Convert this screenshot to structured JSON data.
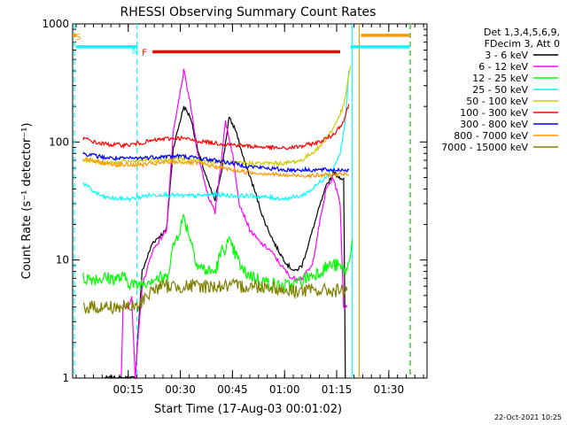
{
  "chart_data": {
    "type": "line",
    "title": "RHESSI Observing Summary Count Rates",
    "xlabel": "Start Time (17-Aug-03 00:01:02)",
    "ylabel": "Count Rate (s⁻¹ detector⁻¹)",
    "y_scale": "log",
    "ylim": [
      1,
      1000
    ],
    "xlim_minutes": [
      0,
      100
    ],
    "x_ticks": [
      {
        "t": 15,
        "label": "00:15"
      },
      {
        "t": 30,
        "label": "00:30"
      },
      {
        "t": 45,
        "label": "00:45"
      },
      {
        "t": 60,
        "label": "01:00"
      },
      {
        "t": 75,
        "label": "01:15"
      },
      {
        "t": 90,
        "label": "01:30"
      }
    ],
    "y_ticks": [
      {
        "v": 1,
        "label": "1"
      },
      {
        "v": 10,
        "label": "10"
      },
      {
        "v": 100,
        "label": "100"
      },
      {
        "v": 1000,
        "label": "1000"
      }
    ],
    "legend": {
      "position": "right",
      "header": [
        "Det 1,3,4,5,6,9,",
        "FDecim 3, Att 0"
      ]
    },
    "series": [
      {
        "name": "3 - 6 keV",
        "color": "#000000",
        "points": [
          [
            8,
            1
          ],
          [
            17,
            1
          ],
          [
            19,
            8
          ],
          [
            22,
            14
          ],
          [
            26,
            18
          ],
          [
            28,
            90
          ],
          [
            31,
            200
          ],
          [
            33,
            160
          ],
          [
            35,
            85
          ],
          [
            38,
            45
          ],
          [
            40,
            32
          ],
          [
            42,
            60
          ],
          [
            44,
            160
          ],
          [
            46,
            125
          ],
          [
            48,
            75
          ],
          [
            51,
            42
          ],
          [
            54,
            22
          ],
          [
            57,
            14
          ],
          [
            59,
            11
          ],
          [
            61,
            9
          ],
          [
            63,
            8
          ],
          [
            65,
            9
          ],
          [
            67,
            14
          ],
          [
            70,
            28
          ],
          [
            72,
            42
          ],
          [
            74,
            55
          ],
          [
            77,
            48
          ],
          [
            77.5,
            1
          ]
        ]
      },
      {
        "name": "6 - 12 keV",
        "color": "#ff00ff",
        "points": [
          [
            13,
            1
          ],
          [
            13.5,
            4
          ],
          [
            15,
            4
          ],
          [
            16,
            5
          ],
          [
            17,
            1
          ],
          [
            19,
            6
          ],
          [
            22,
            12
          ],
          [
            26,
            18
          ],
          [
            28,
            120
          ],
          [
            31,
            400
          ],
          [
            33,
            200
          ],
          [
            35,
            80
          ],
          [
            38,
            35
          ],
          [
            40,
            25
          ],
          [
            42,
            80
          ],
          [
            43,
            150
          ],
          [
            45,
            80
          ],
          [
            47,
            30
          ],
          [
            50,
            18
          ],
          [
            53,
            14
          ],
          [
            56,
            12
          ],
          [
            59,
            9
          ],
          [
            62,
            7
          ],
          [
            65,
            7
          ],
          [
            68,
            9
          ],
          [
            70,
            20
          ],
          [
            72,
            40
          ],
          [
            74,
            50
          ],
          [
            76,
            30
          ],
          [
            77,
            4
          ],
          [
            78,
            4
          ]
        ]
      },
      {
        "name": "12 - 25 keV",
        "color": "#00ff00",
        "points": [
          [
            2,
            7
          ],
          [
            10,
            7
          ],
          [
            14,
            7
          ],
          [
            17,
            6
          ],
          [
            22,
            7
          ],
          [
            26,
            7
          ],
          [
            28,
            13
          ],
          [
            31,
            23
          ],
          [
            33,
            15
          ],
          [
            35,
            9
          ],
          [
            38,
            8
          ],
          [
            40,
            8
          ],
          [
            42,
            12
          ],
          [
            44,
            14
          ],
          [
            46,
            11
          ],
          [
            48,
            8
          ],
          [
            52,
            7
          ],
          [
            58,
            6
          ],
          [
            62,
            6
          ],
          [
            66,
            7
          ],
          [
            70,
            8
          ],
          [
            73,
            9
          ],
          [
            75,
            9
          ],
          [
            78,
            8
          ],
          [
            79.5,
            15
          ]
        ]
      },
      {
        "name": "25 - 50 keV",
        "color": "#00ffff",
        "points": [
          [
            2,
            45
          ],
          [
            5,
            38
          ],
          [
            8,
            34
          ],
          [
            12,
            33
          ],
          [
            16,
            33
          ],
          [
            20,
            35
          ],
          [
            25,
            36
          ],
          [
            30,
            35
          ],
          [
            35,
            35
          ],
          [
            40,
            36
          ],
          [
            45,
            35
          ],
          [
            50,
            35
          ],
          [
            55,
            34
          ],
          [
            60,
            33
          ],
          [
            65,
            35
          ],
          [
            68,
            40
          ],
          [
            71,
            48
          ],
          [
            74,
            60
          ],
          [
            76,
            80
          ],
          [
            77.5,
            150
          ],
          [
            78.5,
            400
          ]
        ]
      },
      {
        "name": "50 - 100 keV",
        "color": "#cccc00",
        "points": [
          [
            2,
            70
          ],
          [
            10,
            66
          ],
          [
            20,
            70
          ],
          [
            25,
            70
          ],
          [
            30,
            72
          ],
          [
            35,
            70
          ],
          [
            40,
            68
          ],
          [
            45,
            66
          ],
          [
            50,
            66
          ],
          [
            55,
            66
          ],
          [
            60,
            66
          ],
          [
            65,
            70
          ],
          [
            70,
            90
          ],
          [
            74,
            130
          ],
          [
            77,
            200
          ],
          [
            79,
            440
          ]
        ]
      },
      {
        "name": "100 - 300 keV",
        "color": "#ff0000",
        "points": [
          [
            2,
            108
          ],
          [
            6,
            98
          ],
          [
            10,
            95
          ],
          [
            15,
            94
          ],
          [
            20,
            100
          ],
          [
            25,
            106
          ],
          [
            30,
            108
          ],
          [
            35,
            102
          ],
          [
            40,
            98
          ],
          [
            45,
            95
          ],
          [
            50,
            92
          ],
          [
            55,
            90
          ],
          [
            60,
            88
          ],
          [
            65,
            92
          ],
          [
            70,
            100
          ],
          [
            74,
            115
          ],
          [
            77,
            150
          ],
          [
            78.5,
            210
          ]
        ]
      },
      {
        "name": "300 - 800 keV",
        "color": "#0000ff",
        "points": [
          [
            2,
            80
          ],
          [
            8,
            74
          ],
          [
            12,
            72
          ],
          [
            18,
            73
          ],
          [
            24,
            75
          ],
          [
            30,
            76
          ],
          [
            35,
            73
          ],
          [
            40,
            70
          ],
          [
            45,
            66
          ],
          [
            50,
            62
          ],
          [
            55,
            60
          ],
          [
            60,
            58
          ],
          [
            65,
            58
          ],
          [
            70,
            58
          ],
          [
            75,
            58
          ],
          [
            78.5,
            58
          ]
        ]
      },
      {
        "name": "800 - 7000 keV",
        "color": "#ff9900",
        "points": [
          [
            2,
            72
          ],
          [
            8,
            66
          ],
          [
            12,
            64
          ],
          [
            18,
            64
          ],
          [
            24,
            66
          ],
          [
            30,
            68
          ],
          [
            35,
            66
          ],
          [
            40,
            62
          ],
          [
            45,
            58
          ],
          [
            50,
            55
          ],
          [
            55,
            54
          ],
          [
            60,
            52
          ],
          [
            65,
            52
          ],
          [
            70,
            52
          ],
          [
            75,
            53
          ],
          [
            78.5,
            53
          ]
        ]
      },
      {
        "name": "7000 - 15000 keV",
        "color": "#808000",
        "points": [
          [
            2,
            4
          ],
          [
            8,
            4
          ],
          [
            12,
            4
          ],
          [
            16,
            4
          ],
          [
            18,
            4
          ],
          [
            20,
            5
          ],
          [
            24,
            6
          ],
          [
            28,
            6
          ],
          [
            32,
            6
          ],
          [
            36,
            6
          ],
          [
            40,
            6
          ],
          [
            44,
            6
          ],
          [
            48,
            6
          ],
          [
            52,
            6
          ],
          [
            56,
            6
          ],
          [
            60,
            5.5
          ],
          [
            64,
            5.5
          ],
          [
            68,
            5.5
          ],
          [
            72,
            5.5
          ],
          [
            76,
            5.5
          ],
          [
            78,
            5.5
          ]
        ]
      }
    ],
    "flag_bars": [
      {
        "label": "S",
        "color": "#ff9900",
        "y": 800,
        "spans": [
          [
            -1,
            0
          ]
        ]
      },
      {
        "label": "",
        "color": "#00ffff",
        "y": 640,
        "spans": [
          [
            0,
            17.5
          ]
        ]
      },
      {
        "label": "N",
        "color": "#00ffff",
        "y": 640,
        "spans": [
          [
            79,
            96
          ]
        ]
      },
      {
        "label": "F",
        "color": "#ff0000",
        "y": 580,
        "spans": [
          [
            22,
            76
          ]
        ]
      },
      {
        "label": "",
        "color": "#ff9900",
        "y": 800,
        "spans": [
          [
            82,
            96
          ]
        ]
      }
    ],
    "vertical_markers": [
      {
        "t": -0.5,
        "color": "#00ffff",
        "style": "dashed"
      },
      {
        "t": 17.5,
        "color": "#00ffff",
        "style": "dashed"
      },
      {
        "t": 79.5,
        "color": "#00ffff",
        "style": "solid"
      },
      {
        "t": 81.5,
        "color": "#ff9900",
        "style": "solid"
      },
      {
        "t": 96,
        "color": "#00ffff",
        "style": "dashed"
      },
      {
        "t": 96.3,
        "color": "#ff9900",
        "style": "dashed"
      }
    ],
    "footer": "22-Oct-2021 10:25"
  }
}
